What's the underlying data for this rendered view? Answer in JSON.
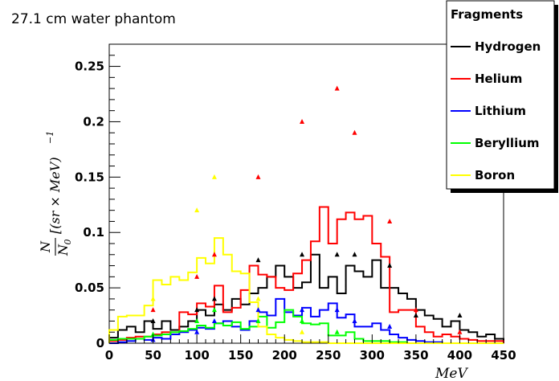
{
  "chart_data": {
    "type": "line",
    "title": "27.1 cm water phantom",
    "xlabel": "MeV",
    "ylabel": {
      "numerator": "N",
      "denominator": "N",
      "denominator_sub": "0",
      "unit": "[(sr × MeV)",
      "unit_power": "−1"
    },
    "xlim": [
      0,
      450
    ],
    "ylim": [
      0,
      0.27
    ],
    "x_ticks": [
      0,
      50,
      100,
      150,
      200,
      250,
      300,
      350,
      400,
      450
    ],
    "y_ticks": [
      0,
      0.05,
      0.1,
      0.15,
      0.2,
      0.25
    ],
    "x_tick_labels": [
      "0",
      "50",
      "100",
      "150",
      "200",
      "250",
      "300",
      "350",
      "400",
      "450"
    ],
    "y_tick_labels": [
      "0",
      "0.05",
      "0.1",
      "0.15",
      "0.2",
      "0.25"
    ],
    "bin_edges": [
      0,
      10,
      20,
      30,
      40,
      50,
      60,
      70,
      80,
      90,
      100,
      110,
      120,
      130,
      140,
      150,
      160,
      170,
      180,
      190,
      200,
      210,
      220,
      230,
      240,
      250,
      260,
      270,
      280,
      290,
      300,
      310,
      320,
      330,
      340,
      350,
      360,
      370,
      380,
      390,
      400,
      410,
      420,
      430,
      440,
      450
    ],
    "legend": {
      "title": "Fragments",
      "position": "top-right",
      "entries": [
        "Hydrogen",
        "Helium",
        "Lithium",
        "Beryllium",
        "Boron"
      ]
    },
    "series": [
      {
        "name": "Hydrogen",
        "color": "#000000",
        "values": [
          0.005,
          0.012,
          0.015,
          0.01,
          0.02,
          0.013,
          0.02,
          0.012,
          0.015,
          0.02,
          0.03,
          0.025,
          0.035,
          0.03,
          0.04,
          0.035,
          0.045,
          0.05,
          0.06,
          0.07,
          0.06,
          0.05,
          0.055,
          0.08,
          0.05,
          0.06,
          0.045,
          0.07,
          0.065,
          0.06,
          0.075,
          0.05,
          0.05,
          0.045,
          0.04,
          0.03,
          0.025,
          0.022,
          0.015,
          0.02,
          0.012,
          0.01,
          0.006,
          0.008,
          0.004
        ],
        "markers": [
          [
            50,
            0.02
          ],
          [
            100,
            0.03
          ],
          [
            120,
            0.04
          ],
          [
            170,
            0.075
          ],
          [
            220,
            0.08
          ],
          [
            260,
            0.08
          ],
          [
            280,
            0.08
          ],
          [
            320,
            0.07
          ],
          [
            350,
            0.025
          ],
          [
            400,
            0.025
          ]
        ]
      },
      {
        "name": "Helium",
        "color": "#ff0000",
        "values": [
          0.002,
          0.003,
          0.005,
          0.006,
          0.006,
          0.008,
          0.01,
          0.008,
          0.028,
          0.026,
          0.036,
          0.033,
          0.052,
          0.028,
          0.032,
          0.048,
          0.07,
          0.062,
          0.06,
          0.05,
          0.048,
          0.063,
          0.075,
          0.092,
          0.123,
          0.09,
          0.112,
          0.118,
          0.112,
          0.115,
          0.09,
          0.078,
          0.028,
          0.03,
          0.03,
          0.015,
          0.01,
          0.006,
          0.008,
          0.006,
          0.004,
          0.003,
          0.002,
          0.002,
          0.002
        ],
        "markers": [
          [
            50,
            0.03
          ],
          [
            100,
            0.06
          ],
          [
            120,
            0.08
          ],
          [
            170,
            0.15
          ],
          [
            220,
            0.2
          ],
          [
            260,
            0.23
          ],
          [
            280,
            0.19
          ],
          [
            320,
            0.11
          ],
          [
            350,
            0.03
          ],
          [
            400,
            0.01
          ]
        ]
      },
      {
        "name": "Lithium",
        "color": "#0000ff",
        "values": [
          0.0,
          0.001,
          0.002,
          0.004,
          0.003,
          0.005,
          0.004,
          0.008,
          0.01,
          0.012,
          0.014,
          0.013,
          0.018,
          0.02,
          0.015,
          0.012,
          0.02,
          0.028,
          0.025,
          0.04,
          0.028,
          0.025,
          0.032,
          0.024,
          0.03,
          0.036,
          0.023,
          0.026,
          0.015,
          0.015,
          0.018,
          0.012,
          0.008,
          0.005,
          0.003,
          0.002,
          0.001,
          0.001,
          0.0,
          0.0,
          0.0,
          0.0,
          0.0,
          0.0,
          0.0
        ],
        "markers": [
          [
            50,
            0.003
          ],
          [
            100,
            0.01
          ],
          [
            120,
            0.02
          ],
          [
            170,
            0.03
          ],
          [
            220,
            0.03
          ],
          [
            260,
            0.03
          ],
          [
            280,
            0.02
          ],
          [
            320,
            0.015
          ]
        ]
      },
      {
        "name": "Beryllium",
        "color": "#00ff00",
        "values": [
          0.003,
          0.004,
          0.004,
          0.004,
          0.006,
          0.007,
          0.008,
          0.01,
          0.011,
          0.013,
          0.016,
          0.014,
          0.018,
          0.016,
          0.019,
          0.013,
          0.015,
          0.024,
          0.014,
          0.019,
          0.03,
          0.024,
          0.018,
          0.017,
          0.018,
          0.007,
          0.007,
          0.01,
          0.004,
          0.002,
          0.002,
          0.002,
          0.001,
          0.001,
          0.0,
          0.0,
          0.0,
          0.0,
          0.0,
          0.0,
          0.0,
          0.0,
          0.0,
          0.0,
          0.0
        ],
        "markers": [
          [
            50,
            0.008
          ],
          [
            100,
            0.02
          ],
          [
            120,
            0.03
          ],
          [
            170,
            0.02
          ],
          [
            220,
            0.02
          ],
          [
            260,
            0.01
          ]
        ]
      },
      {
        "name": "Boron",
        "color": "#ffff00",
        "values": [
          0.012,
          0.024,
          0.025,
          0.025,
          0.034,
          0.057,
          0.053,
          0.06,
          0.057,
          0.064,
          0.077,
          0.072,
          0.095,
          0.08,
          0.065,
          0.063,
          0.037,
          0.015,
          0.008,
          0.005,
          0.003,
          0.002,
          0.001,
          0.001,
          0.001,
          0.0,
          0.0,
          0.0,
          0.0,
          0.0,
          0.0,
          0.0,
          0.0,
          0.0,
          0.0,
          0.0,
          0.0,
          0.0,
          0.0,
          0.0,
          0.0,
          0.0,
          0.0,
          0.0,
          0.0
        ],
        "markers": [
          [
            50,
            0.04
          ],
          [
            100,
            0.12
          ],
          [
            120,
            0.15
          ],
          [
            170,
            0.04
          ],
          [
            220,
            0.01
          ]
        ]
      }
    ]
  }
}
